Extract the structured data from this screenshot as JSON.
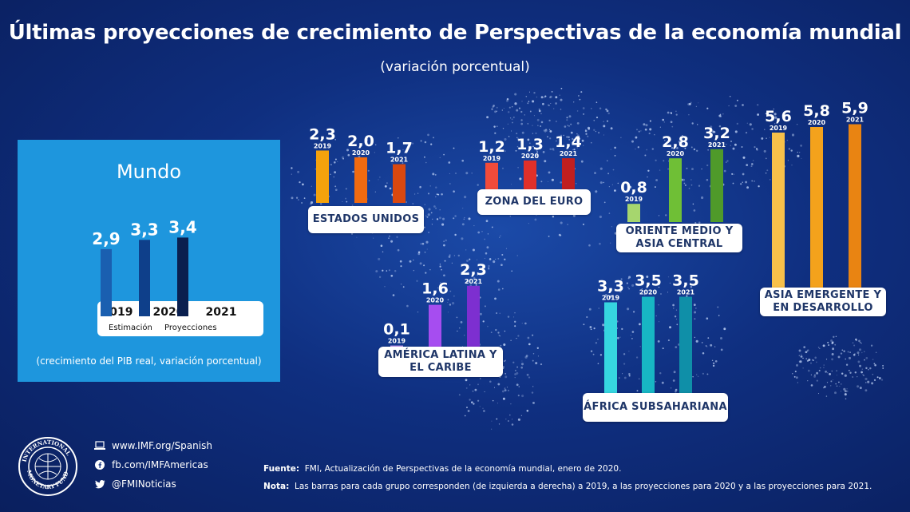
{
  "header": {
    "title": "Últimas proyecciones de crecimiento de Perspectivas de la economía mundial",
    "subtitle": "(variación porcentual)"
  },
  "world": {
    "title": "Mundo",
    "years": [
      "2019",
      "2020",
      "2021"
    ],
    "estimate_label": "Estimación",
    "projection_label": "Proyecciones",
    "caption": "(crecimiento del PIB real, variación porcentual)"
  },
  "footer": {
    "website": "www.IMF.org/Spanish",
    "facebook": "fb.com/IMFAmericas",
    "twitter": "@FMINoticias",
    "source_label": "Fuente:",
    "source_text": "FMI, Actualización de Perspectivas de la economía mundial, enero de 2020.",
    "note_label": "Nota:",
    "note_text": "Las barras para cada grupo corresponden (de izquierda a derecha) a 2019, a las proyecciones para 2020 y a las proyecciones para 2021."
  },
  "chart_data": {
    "type": "bar",
    "categories": [
      "2019",
      "2020",
      "2021"
    ],
    "groups": [
      {
        "name": "Mundo",
        "values": [
          2.9,
          3.3,
          3.4
        ],
        "labels": [
          "2,9",
          "3,3",
          "3,4"
        ],
        "colors": [
          "#1a5fb0",
          "#0e3f8a",
          "#0a1f4f"
        ]
      },
      {
        "name": "ESTADOS UNIDOS",
        "values": [
          2.3,
          2.0,
          1.7
        ],
        "labels": [
          "2,3",
          "2,0",
          "1,7"
        ],
        "colors": [
          "#f4a20c",
          "#f06a10",
          "#d9480f"
        ]
      },
      {
        "name": "ZONA DEL EURO",
        "values": [
          1.2,
          1.3,
          1.4
        ],
        "labels": [
          "1,2",
          "1,3",
          "1,4"
        ],
        "colors": [
          "#f14b3a",
          "#e0302a",
          "#c01f1f"
        ]
      },
      {
        "name": "ORIENTE MEDIO Y ASIA CENTRAL",
        "values": [
          0.8,
          2.8,
          3.2
        ],
        "labels": [
          "0,8",
          "2,8",
          "3,2"
        ],
        "colors": [
          "#a6d66e",
          "#6fbf36",
          "#4f9a2a"
        ]
      },
      {
        "name": "ASIA EMERGENTE Y EN DESARROLLO",
        "values": [
          5.6,
          5.8,
          5.9
        ],
        "labels": [
          "5,6",
          "5,8",
          "5,9"
        ],
        "colors": [
          "#f7c04a",
          "#f4a21c",
          "#e98412"
        ]
      },
      {
        "name": "AMÉRICA LATINA Y EL CARIBE",
        "values": [
          0.1,
          1.6,
          2.3
        ],
        "labels": [
          "0,1",
          "1,6",
          "2,3"
        ],
        "colors": [
          "#c79bf2",
          "#a64df0",
          "#7d2fd0"
        ]
      },
      {
        "name": "ÁFRICA SUBSAHARIANA",
        "values": [
          3.3,
          3.5,
          3.5
        ],
        "labels": [
          "3,3",
          "3,5",
          "3,5"
        ],
        "colors": [
          "#36d6e0",
          "#17b6c4",
          "#0f8fa8"
        ]
      }
    ]
  }
}
